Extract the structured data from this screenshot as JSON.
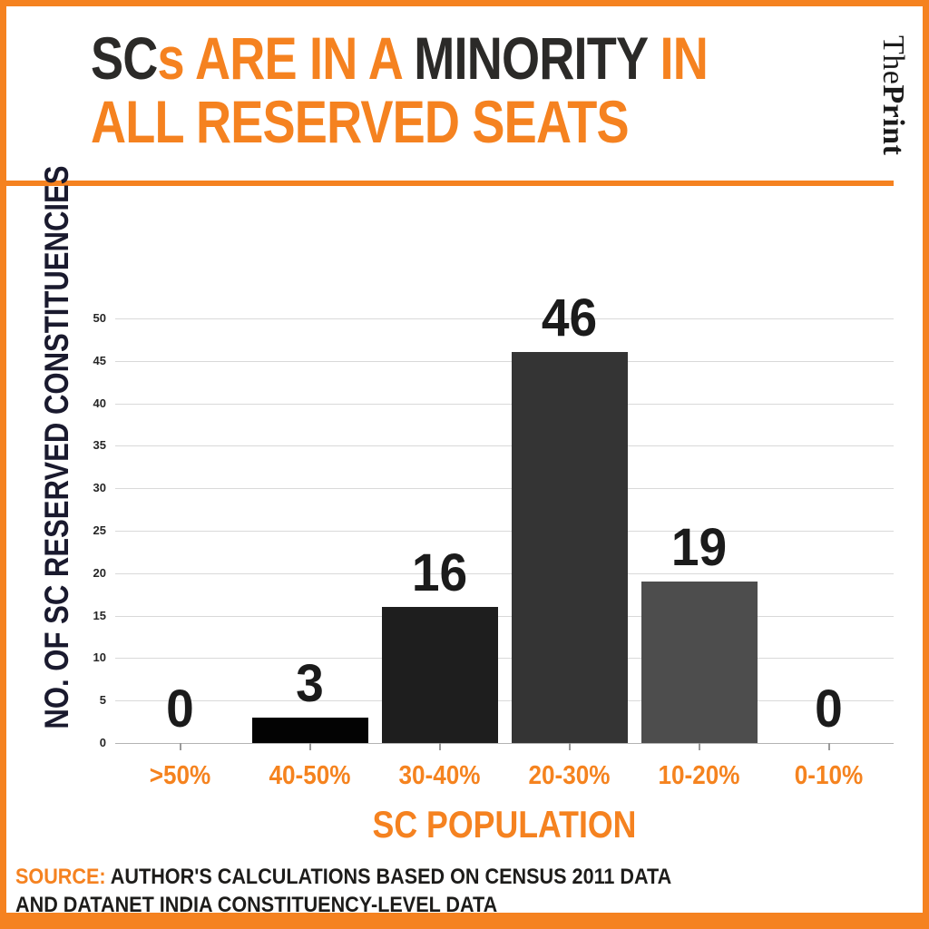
{
  "accent": "#F58220",
  "colors": {
    "title_dark": "#2B2A28",
    "value_label": "#1B1B1B",
    "y_axis_title": "#1A1A2E",
    "gridline": "#D9D9D9",
    "axis_line": "#B3B3B3",
    "y_tick_label": "#262626",
    "x_tick_label": "#F5831F",
    "source_text": "#1D1C1A"
  },
  "header": {
    "title_lines": [
      [
        {
          "text": "SC",
          "style": "dark"
        },
        {
          "text": "s ",
          "style": "accent"
        },
        {
          "text": "ARE IN A ",
          "style": "accent"
        },
        {
          "text": "MINORITY",
          "style": "dark"
        },
        {
          "text": " IN",
          "style": "accent"
        }
      ],
      [
        {
          "text": "ALL RESERVED SEATS",
          "style": "accent"
        }
      ]
    ],
    "brand_regular": "The",
    "brand_bold": "Print"
  },
  "chart_data": {
    "type": "bar",
    "title": "SCs ARE IN A MINORITY IN ALL RESERVED SEATS",
    "categories": [
      ">50%",
      "40-50%",
      "30-40%",
      "20-30%",
      "10-20%",
      "0-10%"
    ],
    "values": [
      0,
      3,
      16,
      46,
      19,
      0
    ],
    "data_labels": [
      "0",
      "3",
      "16",
      "46",
      "19",
      "0"
    ],
    "bar_colors": [
      "#000000",
      "#030303",
      "#1E1E1E",
      "#343434",
      "#4D4D4D",
      "#000000"
    ],
    "xlabel": "SC POPULATION",
    "ylabel": "NO. OF SC RESERVED CONSTITUENCIES",
    "ylim": [
      0,
      50
    ],
    "ytick_step": 5,
    "grid": true,
    "legend_position": "none"
  },
  "source": {
    "label": "SOURCE:",
    "line1": " AUTHOR'S CALCULATIONS BASED ON CENSUS 2011 DATA",
    "line2": "AND DATANET INDIA CONSTITUENCY-LEVEL DATA"
  }
}
